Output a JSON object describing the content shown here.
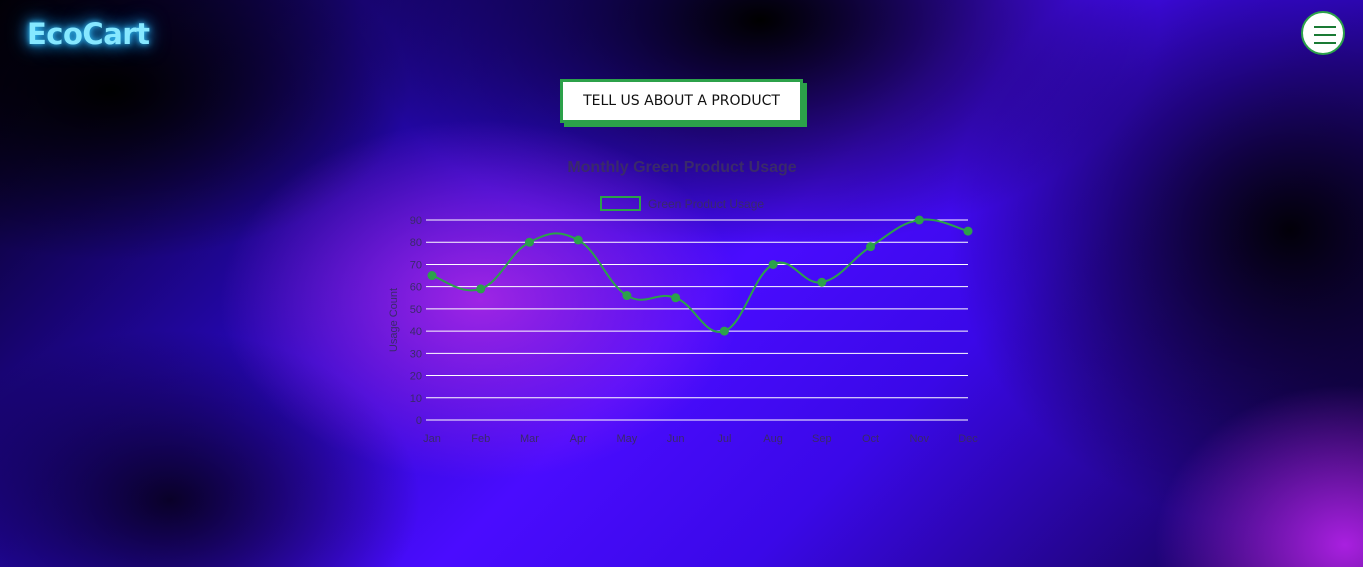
{
  "header": {
    "logo_text": "EcoCart",
    "menu_icon": "hamburger-menu-icon"
  },
  "cta": {
    "label": "TELL US ABOUT A PRODUCT"
  },
  "colors": {
    "accent_green": "#2ca14a",
    "logo_glow": "#35c6ff",
    "chart_text": "#3a2a6a"
  },
  "chart_data": {
    "type": "line",
    "title": "Monthly Green Product Usage",
    "categories": [
      "Jan",
      "Feb",
      "Mar",
      "Apr",
      "May",
      "Jun",
      "Jul",
      "Aug",
      "Sep",
      "Oct",
      "Nov",
      "Dec"
    ],
    "series": [
      {
        "name": "Green Product Usage",
        "values": [
          65,
          59,
          80,
          81,
          56,
          55,
          40,
          70,
          62,
          78,
          90,
          85
        ],
        "color": "#2ca14a"
      }
    ],
    "xlabel": "",
    "ylabel": "Usage Count",
    "ylim": [
      0,
      90
    ],
    "yticks": [
      0,
      10,
      20,
      30,
      40,
      50,
      60,
      70,
      80,
      90
    ],
    "grid": true,
    "legend": "top"
  }
}
